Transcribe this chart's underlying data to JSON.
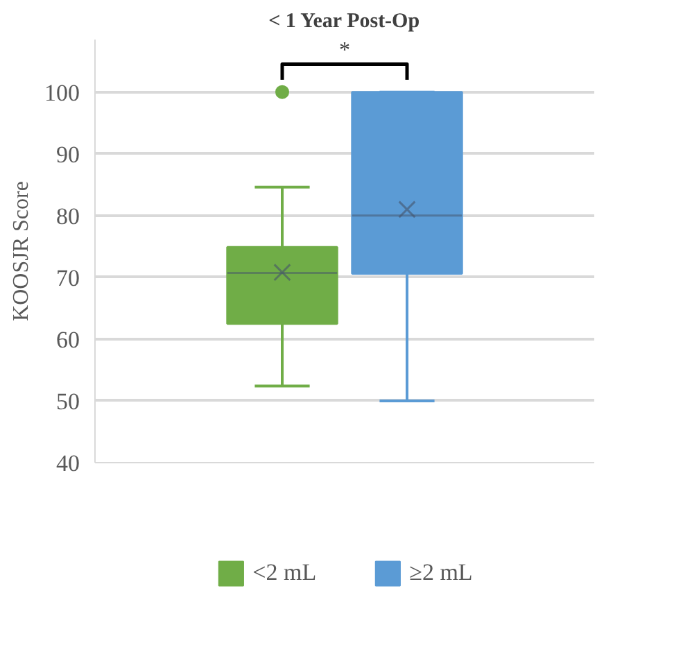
{
  "chart_data": {
    "type": "box",
    "title": "< 1 Year Post-Op",
    "ylabel": "KOOSJR Score",
    "categories": [
      null
    ],
    "series": [
      {
        "name": "<2 mL",
        "color": "#70ad47",
        "boxes": [
          {
            "low": 52.4,
            "q1": 62.5,
            "median": 70.7,
            "q3": 74.9,
            "high": 84.6,
            "mean": 70.8,
            "outliers": [
              100
            ]
          }
        ]
      },
      {
        "name": "≥2 mL",
        "color": "#5b9bd5",
        "boxes": [
          {
            "low": 50,
            "q1": 70.6,
            "median": 80,
            "q3": 100,
            "high": 100,
            "mean": 81
          }
        ]
      }
    ],
    "ylim": [
      40,
      108.5
    ],
    "yticks": [
      40,
      50,
      60,
      70,
      80,
      90,
      100
    ],
    "grid": "y",
    "legend": "bottom",
    "tick_labels": "y",
    "annotations": [
      "*"
    ]
  }
}
